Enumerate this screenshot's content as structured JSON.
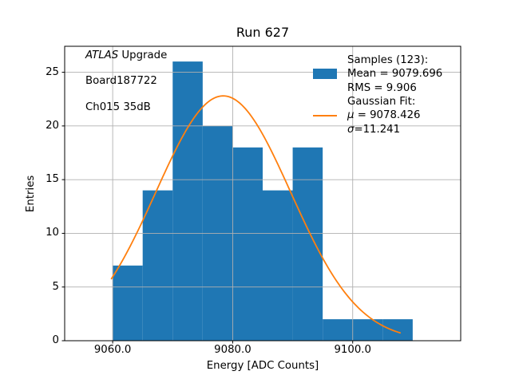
{
  "title": "Run 627",
  "annotation": {
    "line1_italic": "ATLAS",
    "line1_rest": " Upgrade",
    "line2": "Board187722",
    "line3": "Ch015 35dB"
  },
  "legend": {
    "samples_header": "Samples (123):",
    "mean_label": "Mean = 9079.696",
    "rms_label": "RMS = 9.906",
    "fit_header": "Gaussian Fit:",
    "mu_symbol": "μ",
    "mu_rest": " = 9078.426",
    "sigma_symbol": "σ",
    "sigma_rest": "=11.241"
  },
  "chart_data": {
    "type": "bar",
    "subtype": "histogram-with-gaussian-fit",
    "title": "Run 627",
    "xlabel": "Energy [ADC Counts]",
    "ylabel": "Entries",
    "bin_edges": [
      9060,
      9065,
      9070,
      9075,
      9080,
      9085,
      9090,
      9095,
      9100,
      9105,
      9110
    ],
    "counts": [
      7,
      14,
      26,
      20,
      18,
      14,
      18,
      2,
      2,
      2
    ],
    "n_samples": 123,
    "mean": 9079.696,
    "rms": 9.906,
    "gaussian_fit": {
      "mu": 9078.426,
      "sigma": 11.241,
      "amplitude": 22.8,
      "x_start": 9059.8,
      "x_end": 9107.9
    },
    "xlim": [
      9052,
      9118
    ],
    "ylim": [
      0,
      27.42
    ],
    "xticks": [
      9060,
      9080,
      9100
    ],
    "xtick_labels": [
      "9060.0",
      "9080.0",
      "9100.0"
    ],
    "yticks": [
      0,
      5,
      10,
      15,
      20,
      25
    ],
    "ytick_labels": [
      "0",
      "5",
      "10",
      "15",
      "20",
      "25"
    ],
    "grid": true,
    "legend_position": "upper right",
    "colors": {
      "hist": "#1f77b4",
      "fit": "#ff7f0e",
      "grid": "#b0b0b0",
      "spine": "#000000"
    }
  }
}
